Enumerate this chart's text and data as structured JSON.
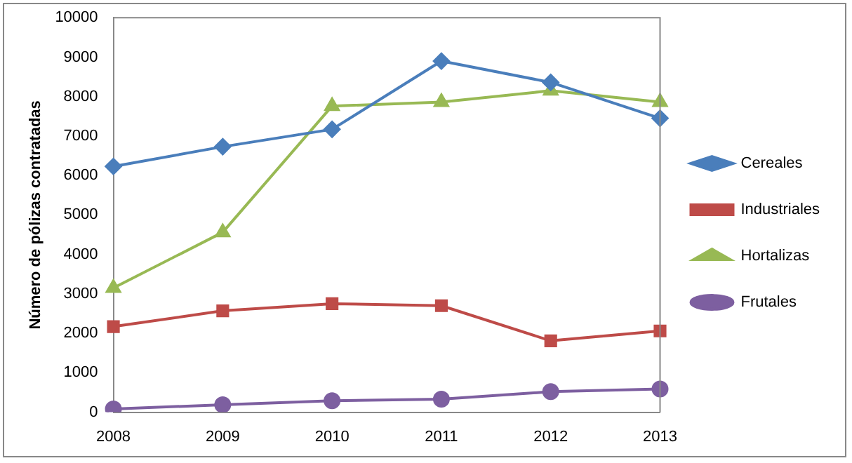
{
  "chart_data": {
    "type": "line",
    "ylabel": "Número de pólizas contratadas",
    "categories": [
      "2008",
      "2009",
      "2010",
      "2011",
      "2012",
      "2013"
    ],
    "ylim": [
      0,
      10000
    ],
    "yticks": [
      0,
      1000,
      2000,
      3000,
      4000,
      5000,
      6000,
      7000,
      8000,
      9000,
      10000
    ],
    "grid": false,
    "legend": "right",
    "series": [
      {
        "name": "Cereales",
        "color": "#4a7ebb",
        "marker": "diamond",
        "values": [
          6230,
          6730,
          7170,
          8900,
          8360,
          7450
        ]
      },
      {
        "name": "Industriales",
        "color": "#be4b48",
        "marker": "square",
        "values": [
          2170,
          2570,
          2750,
          2700,
          1810,
          2060
        ]
      },
      {
        "name": "Hortalizas",
        "color": "#98b954",
        "marker": "triangle",
        "values": [
          3150,
          4560,
          7760,
          7860,
          8150,
          7860
        ]
      },
      {
        "name": "Frutales",
        "color": "#7d5fa0",
        "marker": "circle",
        "values": [
          80,
          190,
          290,
          330,
          520,
          590
        ]
      }
    ]
  }
}
